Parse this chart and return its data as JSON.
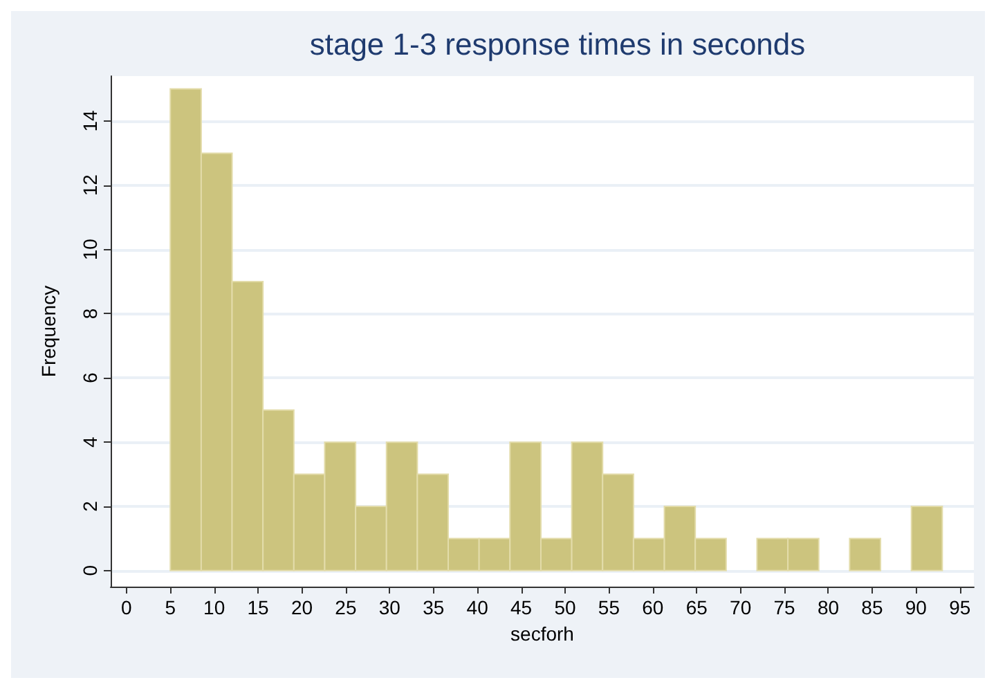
{
  "chart_data": {
    "type": "histogram",
    "title": "stage 1-3 response times in seconds",
    "xlabel": "secforh",
    "ylabel": "Frequency",
    "bins": [
      5,
      8.52,
      12.04,
      15.56,
      19.08,
      22.6,
      26.12,
      29.64,
      33.16,
      36.68,
      40.2,
      43.72,
      47.24,
      50.76,
      54.28,
      57.8,
      61.32,
      64.84,
      68.36,
      71.88,
      75.4,
      78.92,
      82.44,
      85.96,
      89.48,
      93
    ],
    "values": [
      15,
      13,
      9,
      5,
      3,
      4,
      2,
      4,
      3,
      1,
      1,
      4,
      1,
      4,
      3,
      1,
      2,
      1,
      0,
      1,
      1,
      0,
      1,
      0,
      2
    ],
    "color": "#ccc47e",
    "xlim": [
      -1.8,
      96.6
    ],
    "xticks": [
      0,
      5,
      10,
      15,
      20,
      25,
      30,
      35,
      40,
      45,
      50,
      55,
      60,
      65,
      70,
      75,
      80,
      85,
      90,
      95
    ],
    "ylim": [
      -0.5,
      15.4
    ],
    "yticks": [
      0,
      2,
      4,
      6,
      8,
      10,
      12,
      14
    ],
    "grid": "y"
  }
}
